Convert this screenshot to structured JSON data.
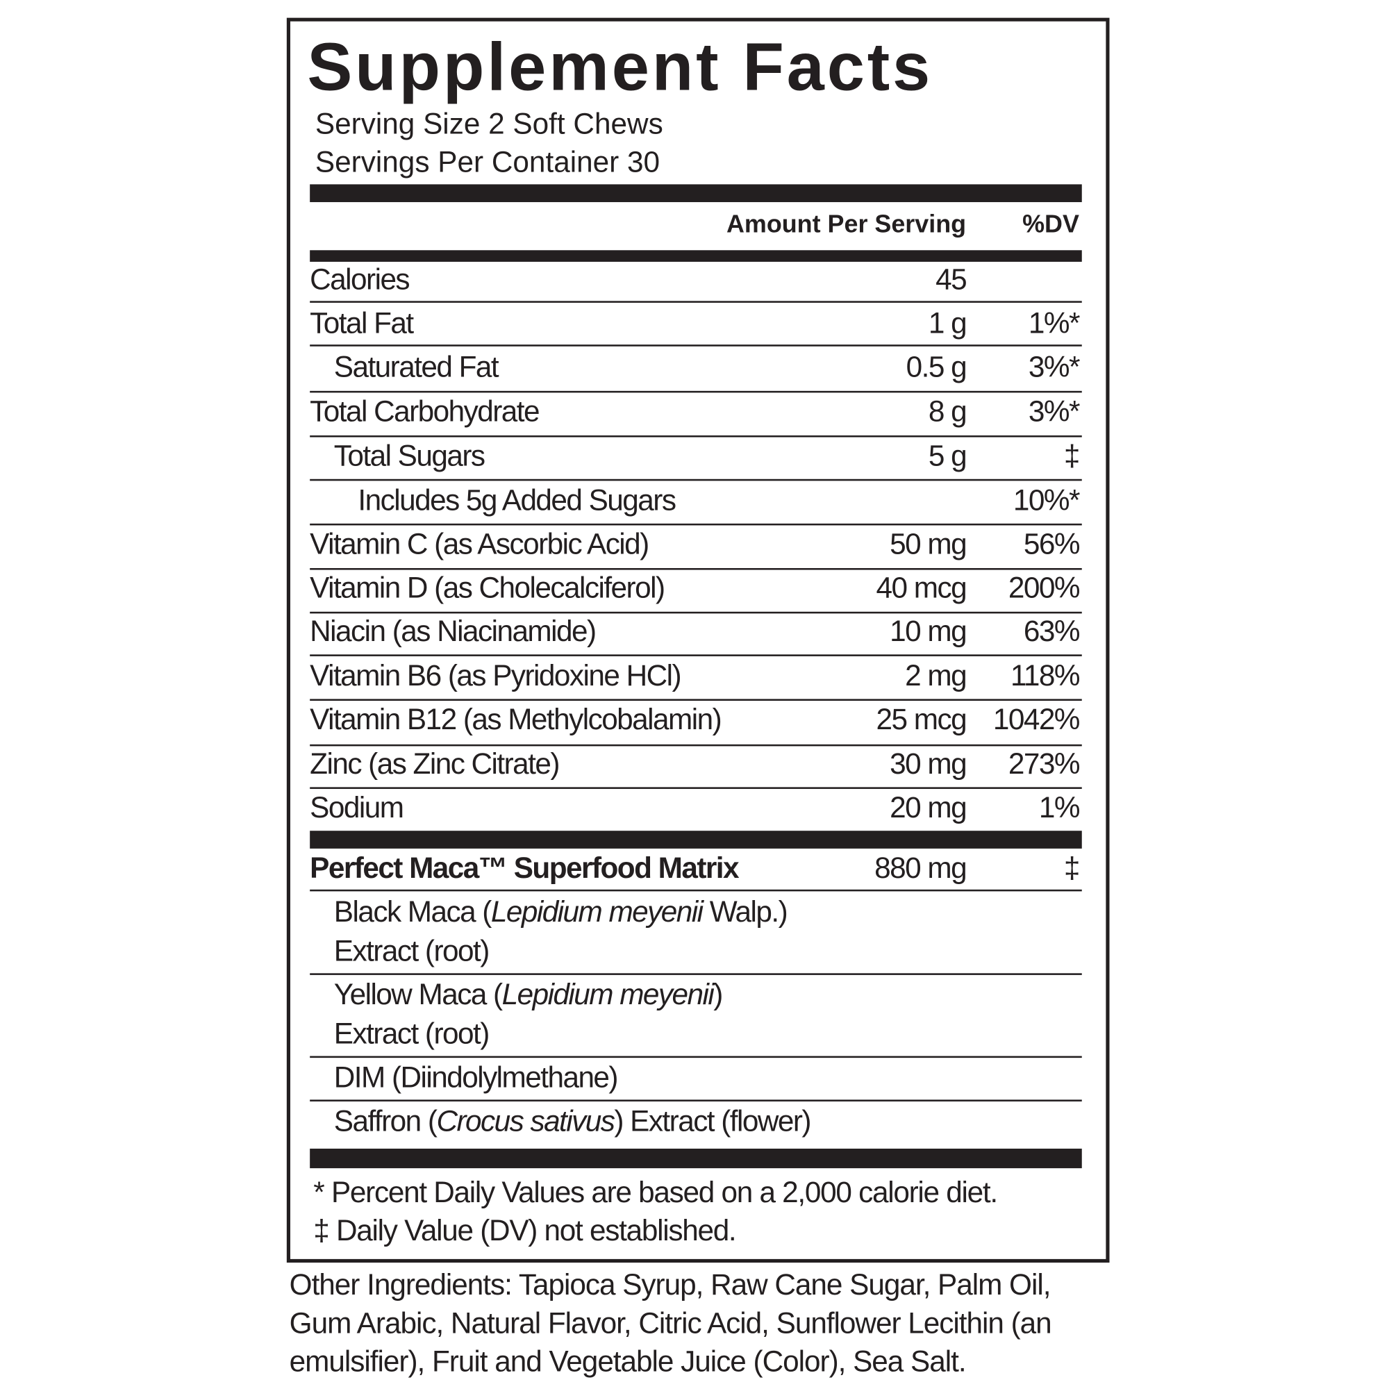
{
  "title": "Supplement Facts",
  "serving_size": "Serving Size 2 Soft Chews",
  "servings_per_container": "Servings Per Container 30",
  "header": {
    "amount": "Amount Per Serving",
    "dv": "%DV"
  },
  "rows": [
    {
      "name": "Calories",
      "amount": "45",
      "dv": ""
    },
    {
      "name": "Total Fat",
      "amount": "1 g",
      "dv": "1%*"
    },
    {
      "name": "Saturated Fat",
      "amount": "0.5 g",
      "dv": "3%*"
    },
    {
      "name": "Total Carbohydrate",
      "amount": "8 g",
      "dv": "3%*"
    },
    {
      "name": "Total Sugars",
      "amount": "5 g",
      "dv": "‡"
    },
    {
      "name": "Includes 5g Added Sugars",
      "amount": "",
      "dv": "10%*"
    },
    {
      "name": "Vitamin C (as Ascorbic Acid)",
      "amount": "50 mg",
      "dv": "56%"
    },
    {
      "name": "Vitamin D (as Cholecalciferol)",
      "amount": "40 mcg",
      "dv": "200%"
    },
    {
      "name": "Niacin (as Niacinamide)",
      "amount": "10 mg",
      "dv": "63%"
    },
    {
      "name": "Vitamin B6 (as Pyridoxine HCl)",
      "amount": "2 mg",
      "dv": "118%"
    },
    {
      "name": "Vitamin B12 (as Methylcobalamin)",
      "amount": "25 mcg",
      "dv": "1042%"
    },
    {
      "name": "Zinc (as Zinc Citrate)",
      "amount": "30 mg",
      "dv": "273%"
    },
    {
      "name": "Sodium",
      "amount": "20 mg",
      "dv": "1%"
    }
  ],
  "blend": {
    "name": "Perfect Maca™ Superfood Matrix",
    "amount": "880 mg",
    "dv": "‡",
    "ingredients": {
      "black_a": "Black Maca (",
      "black_i": "Lepidium meyenii",
      "black_b": " Walp.)",
      "black_2": "Extract (root)",
      "yellow_a": "Yellow Maca (",
      "yellow_i": "Lepidium meyenii",
      "yellow_b": ")",
      "yellow_2": "Extract (root)",
      "dim": "DIM (Diindolylmethane)",
      "saffron_a": "Saffron (",
      "saffron_i": "Crocus sativus",
      "saffron_b": ") Extract (flower)"
    }
  },
  "footnotes": [
    "* Percent Daily Values are based on a 2,000 calorie diet.",
    "‡ Daily Value (DV) not established."
  ],
  "other_ingredients": "Other Ingredients: Tapioca Syrup, Raw Cane Sugar, Palm Oil, Gum Arabic, Natural Flavor, Citric Acid, Sunflower Lecithin (an emulsifier), Fruit and Vegetable Juice (Color), Sea Salt."
}
